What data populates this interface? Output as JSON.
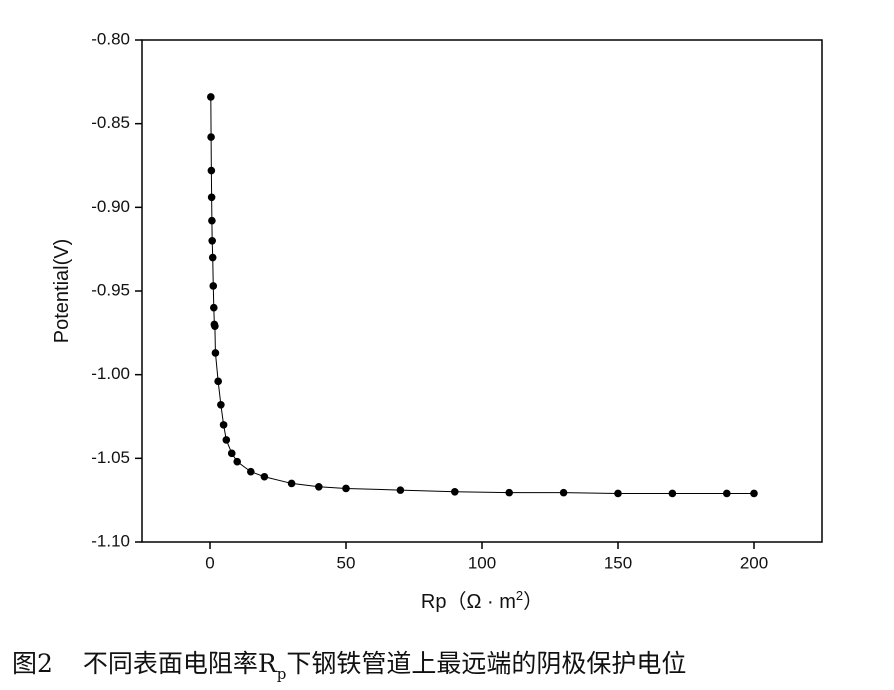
{
  "chart_data": {
    "type": "scatter",
    "x_label": {
      "parts": [
        "Rp（Ω · m",
        "2",
        "）"
      ]
    },
    "y_label": "Potential(V)",
    "caption": {
      "figure": "图2",
      "parts": [
        "不同表面电阻率R",
        "p",
        "下钢铁管道上最远端的阴极保护电位"
      ]
    },
    "x": [
      0.3,
      0.4,
      0.5,
      0.6,
      0.7,
      0.8,
      1.0,
      1.2,
      1.4,
      1.6,
      1.8,
      2,
      3,
      4,
      5,
      6,
      8,
      10,
      15,
      20,
      30,
      40,
      50,
      70,
      90,
      110,
      130,
      150,
      170,
      190,
      200
    ],
    "series": [
      {
        "color": "#000000",
        "values": [
          -0.834,
          -0.858,
          -0.878,
          -0.894,
          -0.908,
          -0.92,
          -0.93,
          -0.947,
          -0.96,
          -0.97,
          -0.971,
          -0.987,
          -1.004,
          -1.018,
          -1.03,
          -1.039,
          -1.047,
          -1.052,
          -1.058,
          -1.061,
          -1.065,
          -1.067,
          -1.068,
          -1.069,
          -1.07,
          -1.0705,
          -1.0705,
          -1.071,
          -1.071,
          -1.071,
          -1.071
        ]
      }
    ],
    "xlim": [
      -25,
      225
    ],
    "ylim": [
      -1.1,
      -0.8
    ],
    "xticks": [
      0,
      50,
      100,
      150,
      200
    ],
    "yticks": [
      {
        "value": -0.8,
        "label": "-0.80"
      },
      -0.85,
      {
        "value": -0.9,
        "label": "-0.90"
      },
      -0.95,
      {
        "value": -1.0,
        "label": "-1.00"
      },
      -1.05,
      {
        "value": -1.1,
        "label": "-1.10"
      }
    ]
  }
}
